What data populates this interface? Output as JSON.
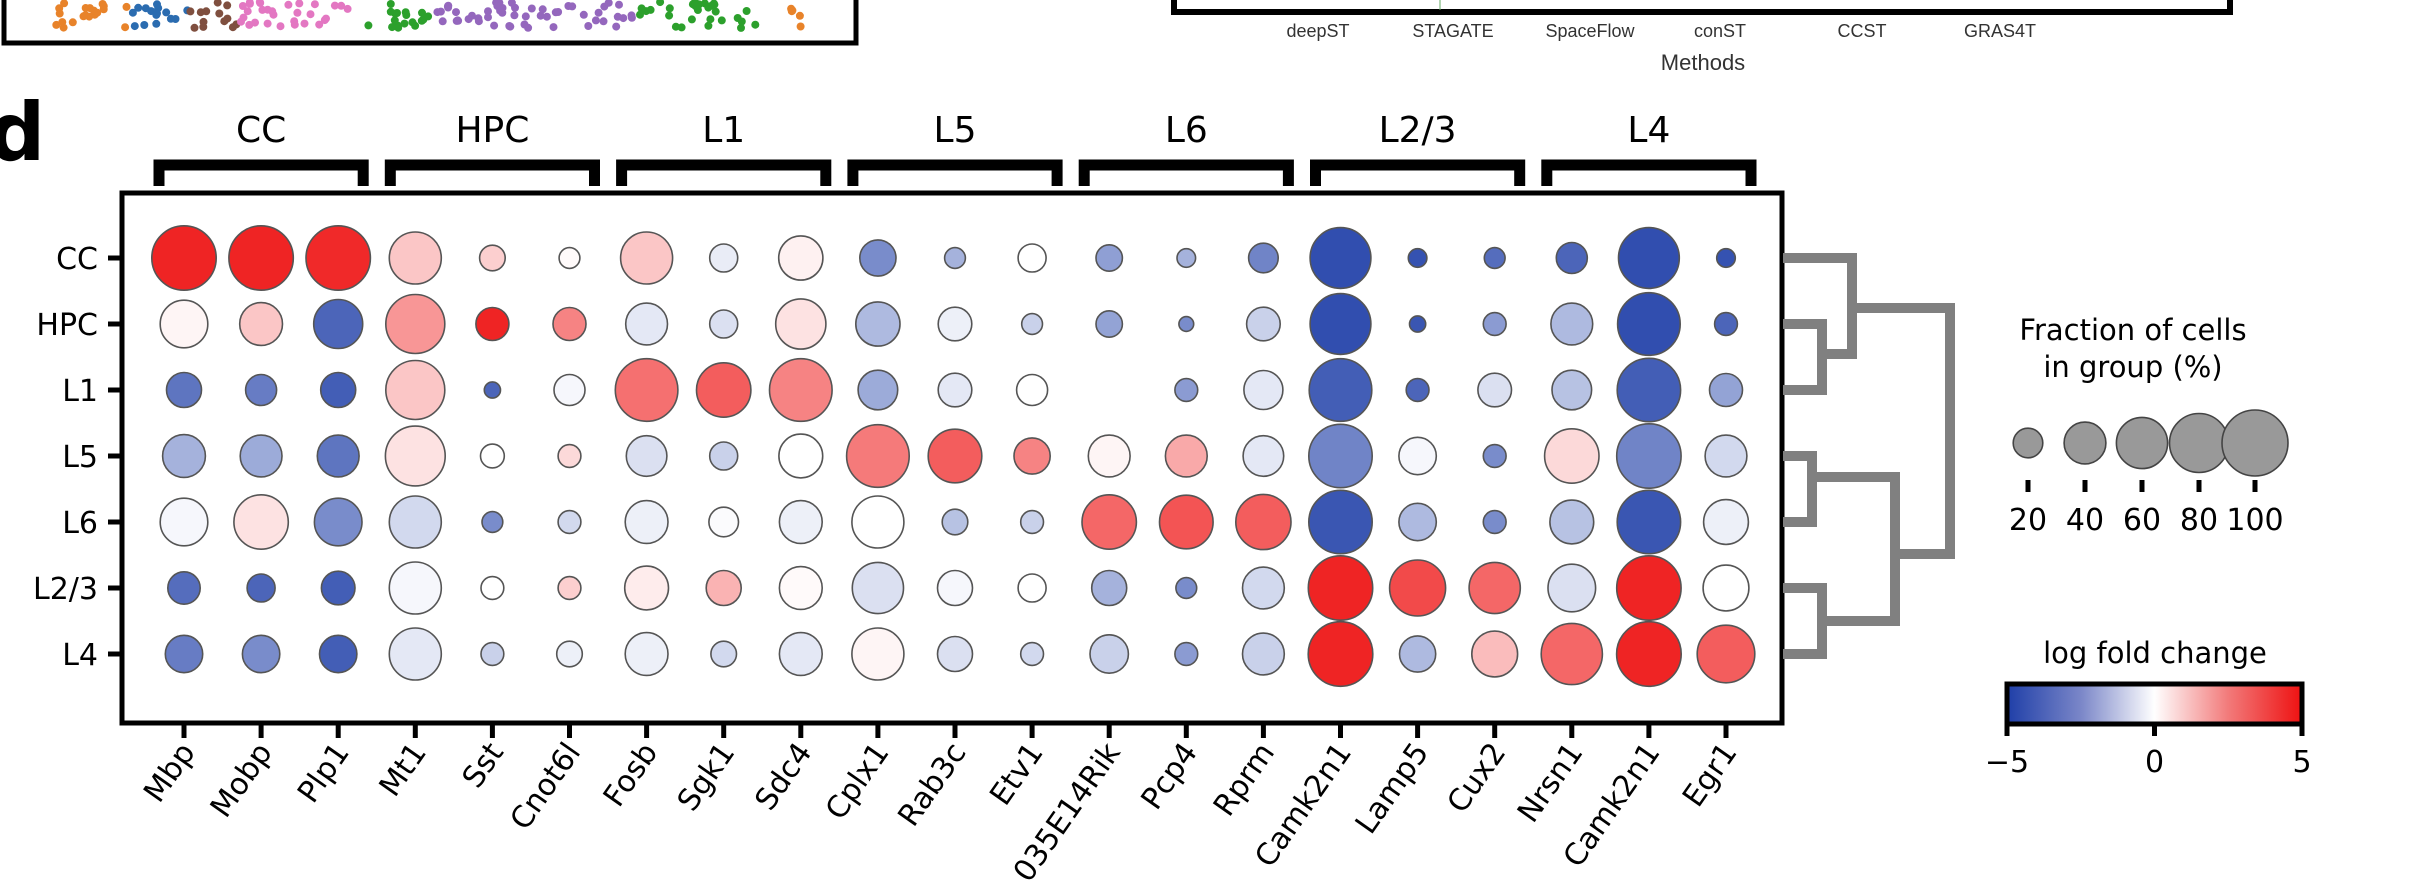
{
  "panel_label": "d",
  "top_right_fragment": {
    "xtick_labels": [
      "deepST",
      "STAGATE",
      "SpaceFlow",
      "conST",
      "CCST",
      "GRAS4T"
    ],
    "xlabel": "Methods"
  },
  "chart_data": {
    "type": "dotplot",
    "title": "",
    "groups": [
      "CC",
      "HPC",
      "L1",
      "L5",
      "L6",
      "L2/3",
      "L4"
    ],
    "rows": [
      "CC",
      "HPC",
      "L1",
      "L5",
      "L6",
      "L2/3",
      "L4"
    ],
    "gene_groups": [
      {
        "label": "CC",
        "genes": [
          "Mbp",
          "Mobp",
          "Plp1"
        ]
      },
      {
        "label": "HPC",
        "genes": [
          "Mt1",
          "Sst",
          "Cnot6l"
        ]
      },
      {
        "label": "L1",
        "genes": [
          "Fosb",
          "Sgk1",
          "Sdc4"
        ]
      },
      {
        "label": "L5",
        "genes": [
          "Cplx1",
          "Rab3c",
          "Etv1"
        ]
      },
      {
        "label": "L6",
        "genes": [
          "035E14Rik",
          "Pcp4",
          "Rprm"
        ]
      },
      {
        "label": "L2/3",
        "genes": [
          "Camk2n1",
          "Lamp5",
          "Cux2"
        ]
      },
      {
        "label": "L4",
        "genes": [
          "Nrsn1",
          "Camk2n1",
          "Egr1"
        ]
      }
    ],
    "columns": [
      "Mbp",
      "Mobp",
      "Plp1",
      "Mt1",
      "Sst",
      "Cnot6l",
      "Fosb",
      "Sgk1",
      "Sdc4",
      "Cplx1",
      "Rab3c",
      "Etv1",
      "035E14Rik",
      "Pcp4",
      "Rprm",
      "Camk2n1",
      "Lamp5",
      "Cux2",
      "Nrsn1",
      "Camk2n1",
      "Egr1"
    ],
    "fraction_pct": [
      [
        95,
        95,
        95,
        62,
        15,
        10,
        62,
        18,
        45,
        30,
        10,
        18,
        16,
        8,
        20,
        85,
        8,
        10,
        22,
        85,
        8
      ],
      [
        52,
        42,
        55,
        80,
        25,
        25,
        40,
        18,
        58,
        45,
        26,
        10,
        16,
        5,
        26,
        85,
        6,
        12,
        40,
        90,
        12
      ],
      [
        28,
        22,
        28,
        80,
        6,
        22,
        90,
        68,
        90,
        36,
        26,
        22,
        0,
        12,
        35,
        90,
        12,
        26,
        36,
        92,
        25
      ],
      [
        42,
        40,
        40,
        82,
        13,
        12,
        38,
        18,
        44,
        90,
        66,
        30,
        40,
        40,
        38,
        92,
        32,
        12,
        68,
        95,
        40
      ],
      [
        52,
        68,
        52,
        62,
        10,
        12,
        42,
        20,
        42,
        62,
        15,
        12,
        68,
        66,
        70,
        92,
        32,
        12,
        44,
        92,
        46
      ],
      [
        24,
        18,
        26,
        62,
        12,
        12,
        44,
        28,
        42,
        60,
        28,
        18,
        28,
        10,
        40,
        95,
        72,
        60,
        52,
        95,
        48
      ],
      [
        32,
        32,
        32,
        62,
        12,
        15,
        42,
        15,
        42,
        62,
        28,
        12,
        34,
        12,
        40,
        96,
        30,
        48,
        86,
        96,
        76
      ]
    ],
    "log_fold_change": [
      [
        4.6,
        4.6,
        4.5,
        1.2,
        1.0,
        0.1,
        1.2,
        -0.5,
        0.3,
        -3.0,
        -2.0,
        0.0,
        -2.5,
        -2.0,
        -3.2,
        -4.6,
        -4.5,
        -3.8,
        -4.0,
        -4.6,
        -4.5
      ],
      [
        0.2,
        1.2,
        -4.0,
        2.2,
        4.6,
        2.6,
        -0.6,
        -0.8,
        0.6,
        -1.8,
        -0.4,
        -1.2,
        -2.4,
        -3.0,
        -1.2,
        -4.6,
        -4.4,
        -2.6,
        -1.8,
        -4.6,
        -4.0
      ],
      [
        -3.6,
        -3.4,
        -4.2,
        1.2,
        -4.0,
        -0.2,
        3.0,
        3.4,
        2.6,
        -2.2,
        -0.6,
        0.0,
        0.0,
        -2.6,
        -0.6,
        -4.2,
        -4.0,
        -0.8,
        -1.6,
        -4.2,
        -2.4
      ],
      [
        -2.0,
        -2.2,
        -3.6,
        0.6,
        0.0,
        0.8,
        -0.8,
        -1.2,
        0.0,
        2.8,
        3.4,
        2.6,
        0.2,
        1.8,
        -0.6,
        -3.2,
        -0.2,
        -3.0,
        0.8,
        -3.2,
        -1.0
      ],
      [
        -0.2,
        0.6,
        -3.0,
        -1.0,
        -3.0,
        -1.0,
        -0.4,
        -0.1,
        -0.4,
        0.0,
        -1.6,
        -1.2,
        3.2,
        3.6,
        3.4,
        -4.4,
        -1.8,
        -3.0,
        -1.6,
        -4.4,
        -0.4
      ],
      [
        -3.8,
        -4.0,
        -4.2,
        -0.2,
        0.0,
        1.0,
        0.4,
        1.6,
        0.1,
        -0.8,
        -0.2,
        0.0,
        -2.0,
        -3.0,
        -1.0,
        4.6,
        3.8,
        3.2,
        -0.8,
        4.6,
        0.0
      ],
      [
        -3.4,
        -3.0,
        -4.2,
        -0.6,
        -1.2,
        -0.4,
        -0.4,
        -1.0,
        -0.6,
        0.2,
        -0.8,
        -1.0,
        -1.2,
        -2.6,
        -1.2,
        4.6,
        -1.8,
        1.4,
        3.2,
        4.6,
        3.4
      ]
    ],
    "size_legend": {
      "title_line1": "Fraction of cells",
      "title_line2": "in group (%)",
      "values": [
        20,
        40,
        60,
        80,
        100
      ],
      "tick_labels": [
        "20",
        "40",
        "60",
        "80",
        "100"
      ]
    },
    "colorbar": {
      "title": "log fold change",
      "vmin": -5,
      "vmax": 5,
      "tick_labels": [
        "−5",
        "0",
        "5"
      ],
      "tick_values": [
        -5,
        0,
        5
      ],
      "colormap": "bwr",
      "color_low": "#1f3fa8",
      "color_mid": "#ffffff",
      "color_high": "#ee1111"
    },
    "dendrogram": {
      "leaves": [
        "CC",
        "HPC",
        "L1",
        "L5",
        "L6",
        "L2/3",
        "L4"
      ],
      "merges": [
        [
          "HPC",
          "L1"
        ],
        [
          "CC",
          "HPC+L1"
        ],
        [
          "L5",
          "L6"
        ],
        [
          "L2/3",
          "L4"
        ],
        [
          "L5+L6",
          "L2/3+L4"
        ],
        [
          "CC+HPC+L1",
          "L5+L6+L2/3+L4"
        ]
      ],
      "color": "#808080"
    },
    "xlabel": "",
    "ylabel": ""
  }
}
